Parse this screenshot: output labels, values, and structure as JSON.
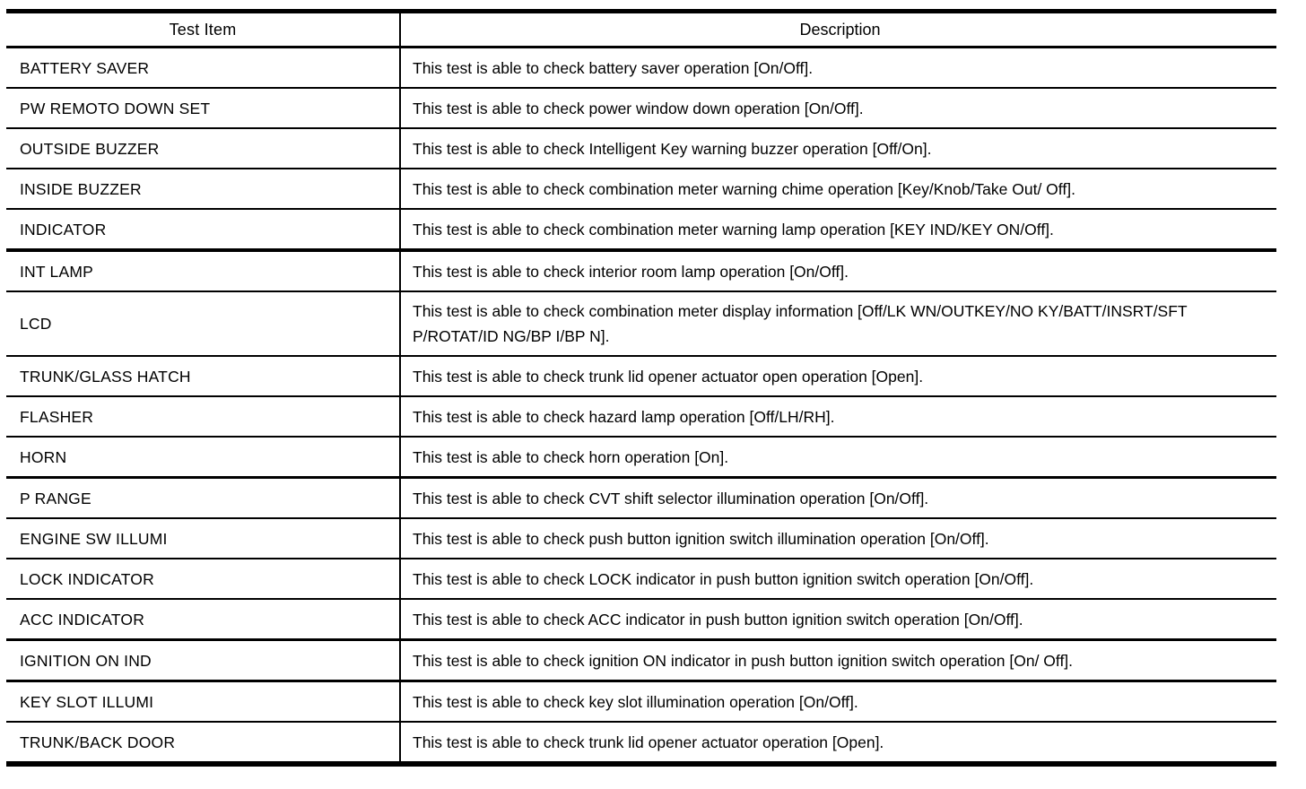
{
  "colors": {
    "background": "#ffffff",
    "text": "#000000",
    "border": "#000000"
  },
  "table": {
    "headers": {
      "test_item": "Test Item",
      "description": "Description"
    },
    "rows": [
      {
        "item": "BATTERY SAVER",
        "description": "This test is able to check battery saver operation [On/Off]."
      },
      {
        "item": "PW REMOTO DOWN SET",
        "description": "This test is able to check power window down operation [On/Off]."
      },
      {
        "item": "OUTSIDE BUZZER",
        "description": "This test is able to check Intelligent Key warning buzzer operation [Off/On]."
      },
      {
        "item": "INSIDE BUZZER",
        "description": "This test is able to check combination meter warning chime operation [Key/Knob/Take Out/ Off]."
      },
      {
        "item": "INDICATOR",
        "description": "This test is able to check combination meter warning lamp operation [KEY IND/KEY ON/Off]."
      },
      {
        "item": "INT LAMP",
        "description": "This test is able to check interior room lamp operation [On/Off]."
      },
      {
        "item": "LCD",
        "description": "This test is able to check combination meter display information [Off/LK WN/OUTKEY/NO KY/BATT/INSRT/SFT P/ROTAT/ID NG/BP I/BP N]."
      },
      {
        "item": "TRUNK/GLASS HATCH",
        "description": "This test is able to check trunk lid opener actuator open operation [Open]."
      },
      {
        "item": "FLASHER",
        "description": "This test is able to check hazard lamp operation [Off/LH/RH]."
      },
      {
        "item": "HORN",
        "description": "This test is able to check horn operation [On]."
      },
      {
        "item": "P RANGE",
        "description": "This test is able to check CVT shift selector illumination operation [On/Off]."
      },
      {
        "item": "ENGINE SW ILLUMI",
        "description": "This test is able to check push button ignition switch illumination operation [On/Off]."
      },
      {
        "item": "LOCK INDICATOR",
        "description": "This test is able to check LOCK indicator in push button ignition switch operation [On/Off]."
      },
      {
        "item": "ACC INDICATOR",
        "description": "This test is able to check ACC indicator in push button ignition switch operation [On/Off]."
      },
      {
        "item": "IGNITION ON IND",
        "description": "This test is able to check ignition ON indicator in push button ignition switch operation [On/ Off]."
      },
      {
        "item": "KEY SLOT ILLUMI",
        "description": "This test is able to check key slot illumination operation [On/Off]."
      },
      {
        "item": "TRUNK/BACK DOOR",
        "description": "This test is able to check trunk lid opener actuator operation [Open]."
      }
    ]
  }
}
